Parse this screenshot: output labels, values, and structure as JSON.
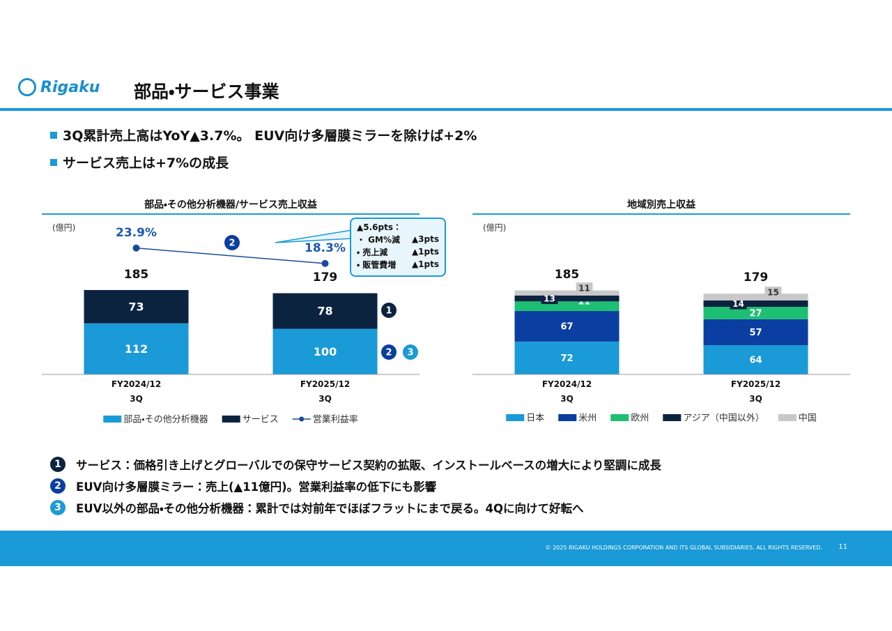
{
  "header": {
    "logo": "Rigaku",
    "title": "部品・サービス事業"
  },
  "bullets": [
    "3Q累計売上高はYoY▲3.7%。 EUV向け多層膜ミラーを除けば+2%",
    "サービス売上は+7%の成長"
  ],
  "chart_data": [
    {
      "type": "bar",
      "stacked": true,
      "title": "部品・その他分析機器/サービス売上収益",
      "unit": "(億円)",
      "categories": [
        "FY2024/12\n3Q",
        "FY2025/12\n3Q"
      ],
      "totals": [
        185,
        179
      ],
      "ylim": [
        0,
        350
      ],
      "y2lim": [
        -22,
        36
      ],
      "series": [
        {
          "name": "部品・その他分析機器",
          "color": "#1a9ad6",
          "values": [
            112,
            100
          ]
        },
        {
          "name": "サービス",
          "color": "#0c2340",
          "values": [
            73,
            78
          ]
        },
        {
          "name": "営業利益率",
          "color": "#1a4a9a",
          "type": "line",
          "axis": "y2",
          "values": [
            23.9,
            18.3
          ],
          "value_labels": [
            "23.9%",
            "18.3%"
          ]
        }
      ],
      "markers": [
        "2",
        "1",
        "2",
        "3"
      ],
      "callout": {
        "head": "▲5.6pts：",
        "rows": [
          [
            "・ GM%減",
            "▲3pts"
          ],
          [
            "・ 売上減",
            "▲1pts"
          ],
          [
            "・ 販管費増",
            "▲1pts"
          ]
        ]
      }
    },
    {
      "type": "bar",
      "stacked": true,
      "title": "地域別売上収益",
      "unit": "(億円)",
      "categories": [
        "FY2024/12\n3Q",
        "FY2025/12\n3Q"
      ],
      "totals": [
        185,
        179
      ],
      "ylim": [
        0,
        350
      ],
      "series": [
        {
          "name": "日本",
          "color": "#1a9ad6",
          "values": [
            72,
            64
          ]
        },
        {
          "name": "米州",
          "color": "#0a3ea0",
          "values": [
            67,
            57
          ]
        },
        {
          "name": "欧州",
          "color": "#1dbf73",
          "values": [
            21,
            27
          ]
        },
        {
          "name": "アジア（中国以外）",
          "color": "#0c2340",
          "values": [
            13,
            14
          ]
        },
        {
          "name": "中国",
          "color": "#c8c8c8",
          "values": [
            11,
            15
          ]
        }
      ]
    }
  ],
  "notes": [
    {
      "marker": "1",
      "text": "サービス：価格引き上げとグローバルでの保守サービス契約の拡販、インストールベースの増大により堅調に成長"
    },
    {
      "marker": "2",
      "text": "EUV向け多層膜ミラー：売上(▲11億円)。営業利益率の低下にも影響"
    },
    {
      "marker": "3",
      "text": "EUV以外の部品・その他分析機器：累計では対前年でほぼフラットにまで戻る。4Qに向けて好転へ"
    }
  ],
  "footer": {
    "copyright": "© 2025 RIGAKU HOLDINGS CORPORATION AND ITS GLOBAL SUBSIDIARIES. ALL RIGHTS RESERVED.",
    "page": "11"
  }
}
